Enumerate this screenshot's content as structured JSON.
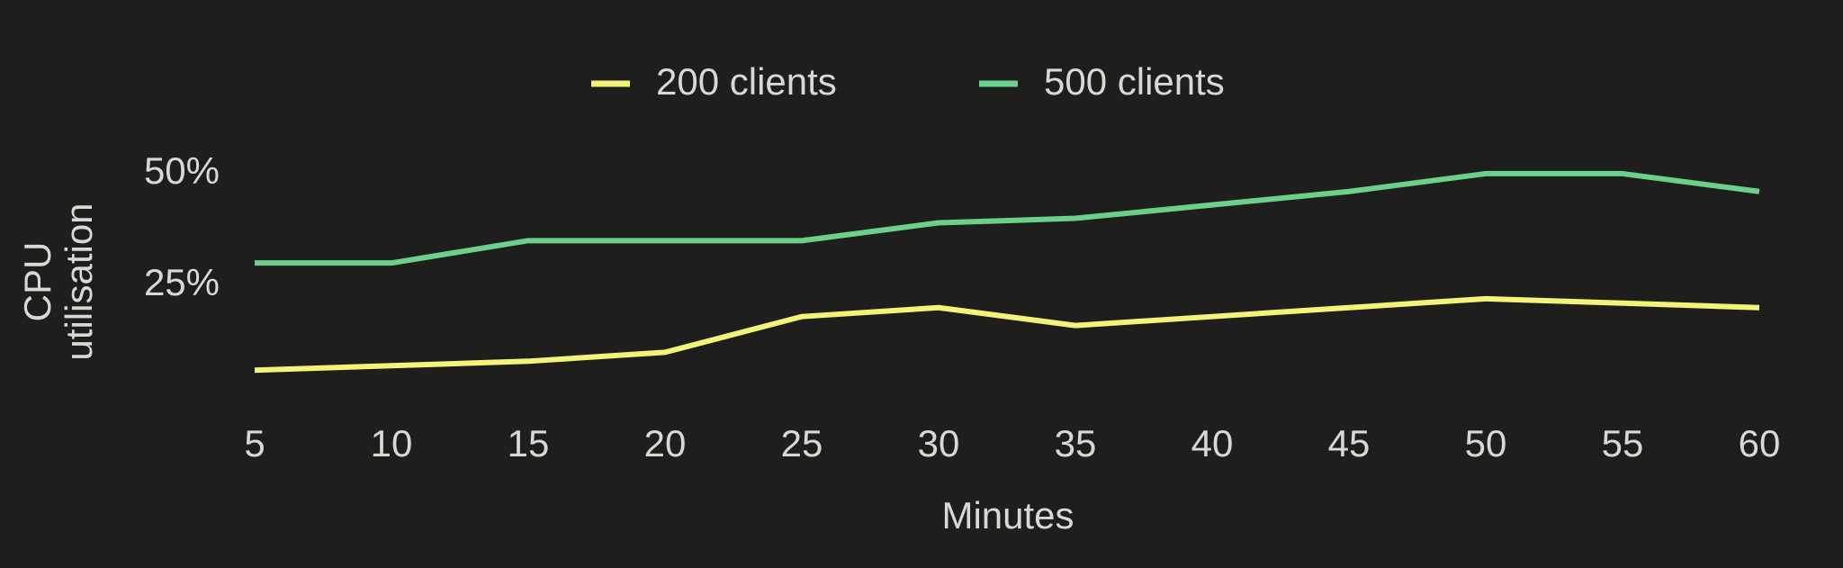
{
  "chart_data": {
    "type": "line",
    "x": [
      5,
      10,
      15,
      20,
      25,
      30,
      35,
      40,
      45,
      50,
      55,
      60
    ],
    "xlim": [
      5,
      60
    ],
    "xticks": [
      5,
      10,
      15,
      20,
      25,
      30,
      35,
      40,
      45,
      50,
      55,
      60
    ],
    "ylim": [
      0,
      52
    ],
    "yticks": [
      {
        "value": 25,
        "label": "25%"
      },
      {
        "value": 50,
        "label": "50%"
      }
    ],
    "x_label": "Minutes",
    "y_label": "CPU utilisation",
    "legend": "top",
    "grid": false,
    "series": [
      {
        "name": "200 clients",
        "color": "#f3f37a",
        "values": [
          6,
          7,
          8,
          10,
          18,
          20,
          16,
          18,
          20,
          22,
          21,
          20
        ]
      },
      {
        "name": "500 clients",
        "color": "#6ccf8a",
        "values": [
          30,
          30,
          35,
          35,
          35,
          39,
          40,
          43,
          46,
          50,
          50,
          46
        ]
      }
    ]
  }
}
